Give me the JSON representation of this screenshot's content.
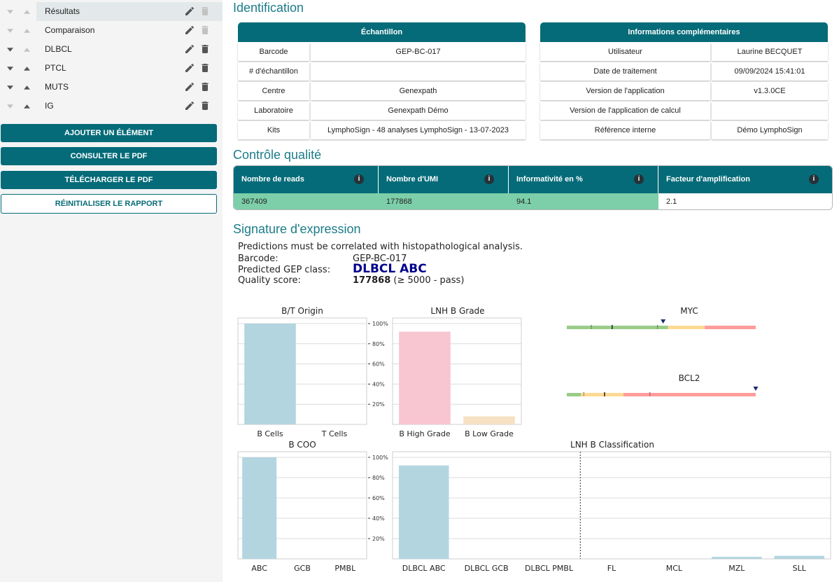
{
  "sidebar": {
    "items": [
      {
        "label": "Résultats",
        "active": true,
        "down_enabled": false,
        "up_enabled": false,
        "delete_enabled": false
      },
      {
        "label": "Comparaison",
        "active": false,
        "down_enabled": false,
        "up_enabled": false,
        "delete_enabled": false
      },
      {
        "label": "DLBCL",
        "active": false,
        "down_enabled": true,
        "up_enabled": false,
        "delete_enabled": true
      },
      {
        "label": "PTCL",
        "active": false,
        "down_enabled": true,
        "up_enabled": true,
        "delete_enabled": true
      },
      {
        "label": "MUTS",
        "active": false,
        "down_enabled": true,
        "up_enabled": true,
        "delete_enabled": true
      },
      {
        "label": "IG",
        "active": false,
        "down_enabled": false,
        "up_enabled": true,
        "delete_enabled": true
      }
    ],
    "buttons": {
      "add": "AJOUTER UN ÉLÉMENT",
      "view_pdf": "CONSULTER LE PDF",
      "download_pdf": "TÉLÉCHARGER LE PDF",
      "reset": "RÉINITIALISER LE RAPPORT"
    }
  },
  "identification": {
    "title": "Identification",
    "sample": {
      "header": "Échantillon",
      "rows": [
        {
          "label": "Barcode",
          "value": "GEP-BC-017"
        },
        {
          "label": "# d'échantillon",
          "value": ""
        },
        {
          "label": "Centre",
          "value": "Genexpath"
        },
        {
          "label": "Laboratoire",
          "value": "Genexpath Démo"
        },
        {
          "label": "Kits",
          "value": "LymphoSign - 48 analyses LymphoSign - 13-07-2023"
        }
      ]
    },
    "extra": {
      "header": "Informations complémentaires",
      "rows": [
        {
          "label": "Utilisateur",
          "value": "Laurine BECQUET"
        },
        {
          "label": "Date de traitement",
          "value": "09/09/2024 15:41:01"
        },
        {
          "label": "Version de l'application",
          "value": "v1.3.0CE"
        },
        {
          "label": "Version de l'application de calcul",
          "value": ""
        },
        {
          "label": "Référence interne",
          "value": "Démo LymphoSign"
        }
      ]
    }
  },
  "quality": {
    "title": "Contrôle qualité",
    "columns": [
      {
        "header": "Nombre de reads",
        "value": "367409",
        "status": "pass"
      },
      {
        "header": "Nombre d'UMI",
        "value": "177868",
        "status": "pass"
      },
      {
        "header": "Informativité en %",
        "value": "94.1",
        "status": "pass"
      },
      {
        "header": "Facteur d'amplification",
        "value": "2.1",
        "status": "neutral"
      }
    ],
    "pass_color": "#7dcfa9"
  },
  "signature": {
    "title": "Signature d'expression",
    "note": "Predictions must be correlated with histopathological analysis.",
    "barcode_label": "Barcode:",
    "barcode_value": "GEP-BC-017",
    "class_label": "Predicted GEP class:",
    "class_value": "DLBCL ABC",
    "class_color": "#00008b",
    "score_label": "Quality score:",
    "score_value": "177868",
    "score_suffix": "(≥ 5000 - pass)"
  },
  "chart_data": [
    {
      "type": "bar",
      "title": "B/T Origin",
      "categories": [
        "B Cells",
        "T Cells"
      ],
      "values": [
        100,
        0
      ],
      "colors": [
        "#b3d5e0",
        "#b3d5e0"
      ],
      "ylim": [
        0,
        100
      ],
      "yticks": [
        "20%",
        "40%",
        "60%",
        "80%",
        "100%"
      ],
      "grid": true
    },
    {
      "type": "bar",
      "title": "LNH B Grade",
      "categories": [
        "B High Grade",
        "B Low Grade"
      ],
      "values": [
        92,
        8
      ],
      "colors": [
        "#f7c6d0",
        "#f6e1c4"
      ],
      "ylim": [
        0,
        100
      ],
      "yticks": [
        "20%",
        "40%",
        "60%",
        "80%",
        "100%"
      ],
      "grid": true
    },
    {
      "type": "bar",
      "title": "B COO",
      "categories": [
        "ABC",
        "GCB",
        "PMBL"
      ],
      "values": [
        100,
        0,
        0
      ],
      "colors": [
        "#b3d5e0",
        "#b3d5e0",
        "#b3d5e0"
      ],
      "ylim": [
        0,
        100
      ],
      "yticks": [
        "20%",
        "40%",
        "60%",
        "80%",
        "100%"
      ],
      "grid": true
    },
    {
      "type": "bar",
      "title": "LNH B Classification",
      "categories": [
        "DLBCL ABC",
        "DLBCL GCB",
        "DLBCL PMBL",
        "FL",
        "MCL",
        "MZL",
        "SLL"
      ],
      "values": [
        92,
        0,
        0,
        0,
        0,
        2,
        3
      ],
      "colors": [
        "#b3d5e0",
        "#b3d5e0",
        "#b3d5e0",
        "#b3d5e0",
        "#b3d5e0",
        "#b3d5e0",
        "#b3d5e0"
      ],
      "ylim": [
        0,
        100
      ],
      "grid": true,
      "divider_after_category": "DLBCL PMBL"
    }
  ],
  "gauges": [
    {
      "title": "MYC",
      "segments": [
        {
          "from": 0,
          "to": 0.535,
          "color": "#99cc88"
        },
        {
          "from": 0.535,
          "to": 0.73,
          "color": "#ffd993"
        },
        {
          "from": 0.73,
          "to": 1.0,
          "color": "#ff9c9c"
        }
      ],
      "marker": 0.51,
      "tick_positions": [
        0.13,
        0.24,
        0.48
      ]
    },
    {
      "title": "BCL2",
      "segments": [
        {
          "from": 0,
          "to": 0.075,
          "color": "#99cc88"
        },
        {
          "from": 0.075,
          "to": 0.3,
          "color": "#ffd993"
        },
        {
          "from": 0.3,
          "to": 1.0,
          "color": "#ff9c9c"
        }
      ],
      "marker": 1.0,
      "tick_positions": [
        0.09,
        0.2,
        0.44
      ]
    }
  ],
  "colors": {
    "primary": "#056b78",
    "title": "#1c7c88",
    "sidebar_bg": "#f4f4f4",
    "active_row": "#e3e9ea"
  },
  "icons": {
    "move_down": "caret-down-icon",
    "move_up": "caret-up-icon",
    "edit": "pencil-icon",
    "delete": "trash-icon",
    "info": "info-circle-icon",
    "marker": "triangle-down-icon"
  }
}
